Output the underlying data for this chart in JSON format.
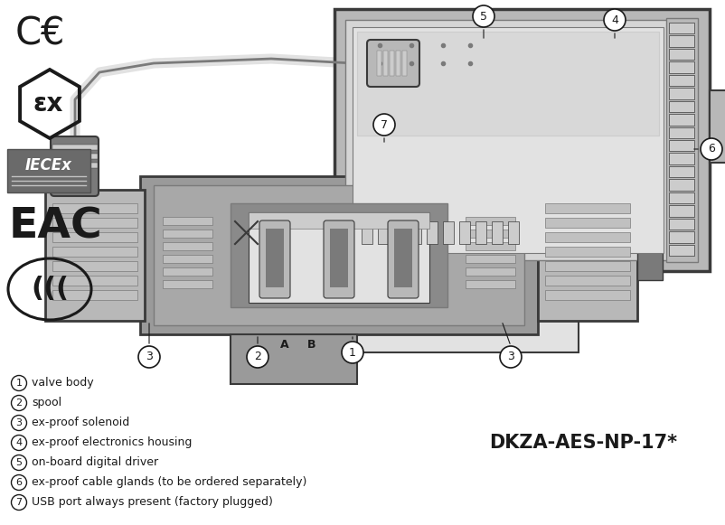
{
  "bg_color": "#ffffff",
  "text_color": "#1a1a1a",
  "model_name": "DKZA-AES-NP-17*",
  "legend_items": [
    {
      "num": "1",
      "text": "valve body"
    },
    {
      "num": "2",
      "text": "spool"
    },
    {
      "num": "3",
      "text": "ex-proof solenoid"
    },
    {
      "num": "4",
      "text": "ex-proof electronics housing"
    },
    {
      "num": "5",
      "text": "on-board digital driver"
    },
    {
      "num": "6",
      "text": "ex-proof cable glands (to be ordered separately)"
    },
    {
      "num": "7",
      "text": "USB port always present (factory plugged)"
    }
  ],
  "gray_dark": "#3a3a3a",
  "gray_mid": "#7a7a7a",
  "gray_body": "#9a9a9a",
  "gray_housing": "#b8b8b8",
  "gray_light": "#cccccc",
  "gray_lighter": "#e2e2e2",
  "gray_panel": "#d5d5d5",
  "gray_inner": "#a8a8a8",
  "gray_coil": "#c0c0c0"
}
